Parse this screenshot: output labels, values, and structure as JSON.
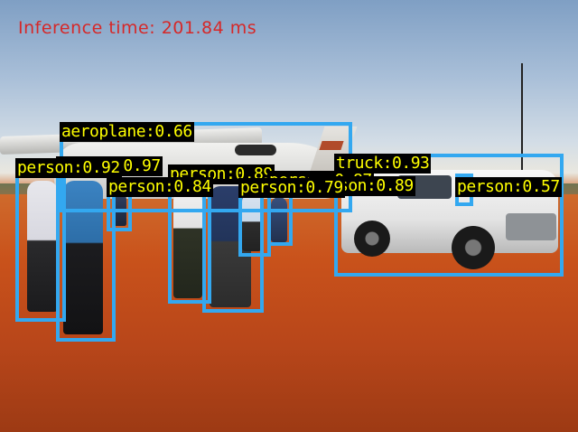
{
  "overlay": {
    "inference_text": "Inference time: 201.84 ms"
  },
  "colors": {
    "box": "#33a8f0",
    "label_text": "#ffff00",
    "label_bg": "#000000",
    "inference_text": "#d62828"
  },
  "detections": [
    {
      "label": "aeroplane:0.66"
    },
    {
      "label": "person:0.92"
    },
    {
      "label": "person:0.97"
    },
    {
      "label": "person:0.89"
    },
    {
      "label": "person:0.84"
    },
    {
      "label": "person:0.87"
    },
    {
      "label": "person:0.79"
    },
    {
      "label": "person:0.89"
    },
    {
      "label": "truck:0.93"
    },
    {
      "label": "person:0.57"
    }
  ]
}
